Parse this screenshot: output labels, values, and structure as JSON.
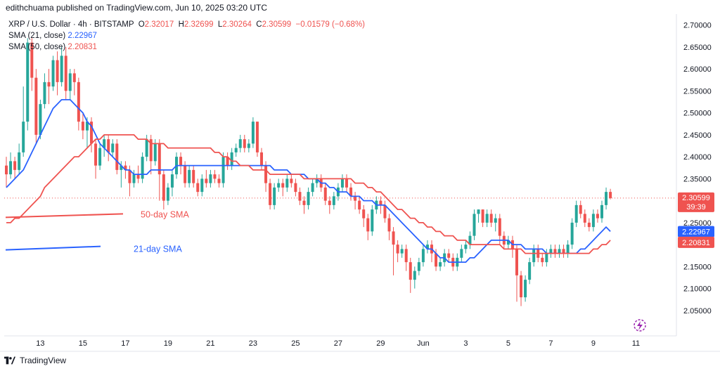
{
  "header": {
    "publisher": "edithchuama published on TradingView.com, Jun 10, 2025 03:20 UTC"
  },
  "legend": {
    "symbol": "XRP / U.S. Dollar · 4h · BITSTAMP",
    "open_label": "O",
    "open": "2.32017",
    "high_label": "H",
    "high": "2.32699",
    "low_label": "L",
    "low": "2.30264",
    "close_label": "C",
    "close": "2.30599",
    "change": "−0.01579 (−0.68%)",
    "sma21_label": "SMA (21, close)",
    "sma21_value": "2.22967",
    "sma50_label": "SMA (50, close)",
    "sma50_value": "2.20831"
  },
  "footer": {
    "brand": "TradingView"
  },
  "chart_data": {
    "type": "candlestick",
    "title": "XRP / U.S. Dollar · 4h · BITSTAMP",
    "ylim": [
      2.005,
      2.725
    ],
    "y_ticks": [
      "2.70000",
      "2.65000",
      "2.60000",
      "2.55000",
      "2.50000",
      "2.45000",
      "2.40000",
      "2.35000",
      "2.30000",
      "2.25000",
      "2.20000",
      "2.15000",
      "2.10000",
      "2.05000"
    ],
    "x_ticks": [
      "13",
      "15",
      "17",
      "19",
      "21",
      "23",
      "25",
      "27",
      "29",
      "Jun",
      "3",
      "5",
      "7",
      "9",
      "11"
    ],
    "x_tick_candle_index": [
      8,
      18,
      28,
      38,
      48,
      58,
      68,
      78,
      88,
      98,
      108,
      118,
      128,
      138,
      148
    ],
    "candles": [
      [
        2.38,
        2.36,
        2.4,
        2.33
      ],
      [
        2.36,
        2.39,
        2.41,
        2.35
      ],
      [
        2.39,
        2.37,
        2.4,
        2.35
      ],
      [
        2.37,
        2.41,
        2.43,
        2.36
      ],
      [
        2.41,
        2.48,
        2.56,
        2.4
      ],
      [
        2.48,
        2.66,
        2.67,
        2.46
      ],
      [
        2.66,
        2.58,
        2.67,
        2.55
      ],
      [
        2.58,
        2.45,
        2.6,
        2.43
      ],
      [
        2.45,
        2.52,
        2.53,
        2.44
      ],
      [
        2.52,
        2.57,
        2.59,
        2.51
      ],
      [
        2.57,
        2.56,
        2.6,
        2.52
      ],
      [
        2.56,
        2.62,
        2.63,
        2.55
      ],
      [
        2.62,
        2.57,
        2.64,
        2.54
      ],
      [
        2.57,
        2.63,
        2.65,
        2.56
      ],
      [
        2.63,
        2.55,
        2.65,
        2.53
      ],
      [
        2.55,
        2.59,
        2.6,
        2.53
      ],
      [
        2.59,
        2.57,
        2.6,
        2.54
      ],
      [
        2.57,
        2.48,
        2.58,
        2.46
      ],
      [
        2.48,
        2.46,
        2.5,
        2.44
      ],
      [
        2.46,
        2.48,
        2.49,
        2.42
      ],
      [
        2.48,
        2.43,
        2.49,
        2.41
      ],
      [
        2.43,
        2.38,
        2.44,
        2.35
      ],
      [
        2.38,
        2.42,
        2.43,
        2.37
      ],
      [
        2.42,
        2.44,
        2.45,
        2.4
      ],
      [
        2.44,
        2.41,
        2.45,
        2.39
      ],
      [
        2.41,
        2.43,
        2.44,
        2.4
      ],
      [
        2.43,
        2.37,
        2.44,
        2.36
      ],
      [
        2.37,
        2.38,
        2.39,
        2.33
      ],
      [
        2.38,
        2.37,
        2.39,
        2.35
      ],
      [
        2.37,
        2.34,
        2.38,
        2.31
      ],
      [
        2.34,
        2.36,
        2.37,
        2.33
      ],
      [
        2.36,
        2.35,
        2.38,
        2.34
      ],
      [
        2.35,
        2.4,
        2.41,
        2.34
      ],
      [
        2.4,
        2.44,
        2.45,
        2.39
      ],
      [
        2.44,
        2.39,
        2.45,
        2.36
      ],
      [
        2.39,
        2.43,
        2.44,
        2.38
      ],
      [
        2.43,
        2.36,
        2.44,
        2.3
      ],
      [
        2.36,
        2.3,
        2.37,
        2.28
      ],
      [
        2.3,
        2.33,
        2.34,
        2.29
      ],
      [
        2.33,
        2.36,
        2.37,
        2.31
      ],
      [
        2.36,
        2.4,
        2.41,
        2.35
      ],
      [
        2.4,
        2.38,
        2.41,
        2.36
      ],
      [
        2.38,
        2.34,
        2.39,
        2.33
      ],
      [
        2.34,
        2.37,
        2.38,
        2.33
      ],
      [
        2.37,
        2.34,
        2.38,
        2.33
      ],
      [
        2.34,
        2.32,
        2.35,
        2.31
      ],
      [
        2.32,
        2.35,
        2.36,
        2.31
      ],
      [
        2.35,
        2.34,
        2.37,
        2.33
      ],
      [
        2.34,
        2.36,
        2.37,
        2.33
      ],
      [
        2.36,
        2.35,
        2.37,
        2.34
      ],
      [
        2.35,
        2.34,
        2.36,
        2.33
      ],
      [
        2.34,
        2.4,
        2.41,
        2.33
      ],
      [
        2.4,
        2.38,
        2.41,
        2.37
      ],
      [
        2.38,
        2.41,
        2.42,
        2.37
      ],
      [
        2.41,
        2.42,
        2.43,
        2.4
      ],
      [
        2.42,
        2.44,
        2.45,
        2.41
      ],
      [
        2.44,
        2.42,
        2.45,
        2.41
      ],
      [
        2.42,
        2.43,
        2.44,
        2.41
      ],
      [
        2.43,
        2.48,
        2.49,
        2.42
      ],
      [
        2.48,
        2.41,
        2.48,
        2.4
      ],
      [
        2.41,
        2.38,
        2.42,
        2.37
      ],
      [
        2.38,
        2.34,
        2.39,
        2.32
      ],
      [
        2.34,
        2.29,
        2.35,
        2.28
      ],
      [
        2.29,
        2.33,
        2.34,
        2.28
      ],
      [
        2.33,
        2.34,
        2.35,
        2.32
      ],
      [
        2.34,
        2.33,
        2.35,
        2.31
      ],
      [
        2.33,
        2.35,
        2.36,
        2.32
      ],
      [
        2.35,
        2.34,
        2.36,
        2.33
      ],
      [
        2.34,
        2.32,
        2.35,
        2.31
      ],
      [
        2.32,
        2.3,
        2.33,
        2.29
      ],
      [
        2.3,
        2.29,
        2.31,
        2.27
      ],
      [
        2.29,
        2.32,
        2.33,
        2.28
      ],
      [
        2.32,
        2.34,
        2.35,
        2.31
      ],
      [
        2.34,
        2.35,
        2.36,
        2.33
      ],
      [
        2.35,
        2.33,
        2.36,
        2.32
      ],
      [
        2.33,
        2.3,
        2.34,
        2.29
      ],
      [
        2.3,
        2.29,
        2.31,
        2.27
      ],
      [
        2.29,
        2.31,
        2.32,
        2.28
      ],
      [
        2.31,
        2.33,
        2.34,
        2.3
      ],
      [
        2.33,
        2.35,
        2.36,
        2.32
      ],
      [
        2.35,
        2.33,
        2.36,
        2.32
      ],
      [
        2.33,
        2.31,
        2.34,
        2.3
      ],
      [
        2.31,
        2.3,
        2.32,
        2.28
      ],
      [
        2.3,
        2.28,
        2.31,
        2.27
      ],
      [
        2.28,
        2.26,
        2.29,
        2.24
      ],
      [
        2.26,
        2.23,
        2.27,
        2.21
      ],
      [
        2.23,
        2.28,
        2.29,
        2.22
      ],
      [
        2.28,
        2.3,
        2.31,
        2.27
      ],
      [
        2.3,
        2.29,
        2.31,
        2.27
      ],
      [
        2.29,
        2.26,
        2.3,
        2.25
      ],
      [
        2.26,
        2.23,
        2.27,
        2.21
      ],
      [
        2.23,
        2.2,
        2.24,
        2.13
      ],
      [
        2.2,
        2.18,
        2.21,
        2.16
      ],
      [
        2.18,
        2.19,
        2.2,
        2.17
      ],
      [
        2.19,
        2.16,
        2.2,
        2.14
      ],
      [
        2.16,
        2.12,
        2.17,
        2.09
      ],
      [
        2.12,
        2.14,
        2.15,
        2.1
      ],
      [
        2.14,
        2.16,
        2.17,
        2.13
      ],
      [
        2.16,
        2.19,
        2.2,
        2.15
      ],
      [
        2.19,
        2.2,
        2.21,
        2.18
      ],
      [
        2.2,
        2.18,
        2.21,
        2.16
      ],
      [
        2.18,
        2.15,
        2.19,
        2.14
      ],
      [
        2.15,
        2.16,
        2.17,
        2.14
      ],
      [
        2.16,
        2.18,
        2.19,
        2.15
      ],
      [
        2.18,
        2.17,
        2.19,
        2.16
      ],
      [
        2.17,
        2.15,
        2.18,
        2.14
      ],
      [
        2.15,
        2.17,
        2.18,
        2.14
      ],
      [
        2.17,
        2.19,
        2.2,
        2.16
      ],
      [
        2.19,
        2.2,
        2.21,
        2.18
      ],
      [
        2.2,
        2.22,
        2.23,
        2.19
      ],
      [
        2.22,
        2.27,
        2.28,
        2.21
      ],
      [
        2.27,
        2.28,
        2.28,
        2.25
      ],
      [
        2.28,
        2.25,
        2.28,
        2.24
      ],
      [
        2.25,
        2.27,
        2.28,
        2.24
      ],
      [
        2.27,
        2.25,
        2.28,
        2.24
      ],
      [
        2.25,
        2.26,
        2.27,
        2.23
      ],
      [
        2.26,
        2.22,
        2.27,
        2.2
      ],
      [
        2.22,
        2.2,
        2.23,
        2.19
      ],
      [
        2.2,
        2.21,
        2.22,
        2.19
      ],
      [
        2.21,
        2.19,
        2.22,
        2.17
      ],
      [
        2.19,
        2.13,
        2.2,
        2.07
      ],
      [
        2.13,
        2.08,
        2.14,
        2.06
      ],
      [
        2.08,
        2.12,
        2.13,
        2.07
      ],
      [
        2.12,
        2.16,
        2.17,
        2.11
      ],
      [
        2.16,
        2.19,
        2.2,
        2.15
      ],
      [
        2.19,
        2.17,
        2.2,
        2.16
      ],
      [
        2.17,
        2.16,
        2.18,
        2.15
      ],
      [
        2.16,
        2.18,
        2.19,
        2.15
      ],
      [
        2.18,
        2.19,
        2.2,
        2.17
      ],
      [
        2.19,
        2.18,
        2.2,
        2.17
      ],
      [
        2.18,
        2.19,
        2.2,
        2.17
      ],
      [
        2.19,
        2.18,
        2.2,
        2.17
      ],
      [
        2.18,
        2.2,
        2.21,
        2.17
      ],
      [
        2.2,
        2.25,
        2.26,
        2.19
      ],
      [
        2.25,
        2.29,
        2.3,
        2.24
      ],
      [
        2.29,
        2.27,
        2.3,
        2.26
      ],
      [
        2.27,
        2.25,
        2.28,
        2.24
      ],
      [
        2.25,
        2.24,
        2.26,
        2.23
      ],
      [
        2.24,
        2.27,
        2.28,
        2.23
      ],
      [
        2.27,
        2.26,
        2.28,
        2.25
      ],
      [
        2.26,
        2.29,
        2.3,
        2.25
      ],
      [
        2.29,
        2.32,
        2.33,
        2.28
      ],
      [
        2.32,
        2.306,
        2.327,
        2.303
      ]
    ],
    "series": [
      {
        "name": "SMA (21, close)",
        "color": "#2962ff",
        "values": [
          2.33,
          2.34,
          2.35,
          2.36,
          2.37,
          2.39,
          2.41,
          2.43,
          2.45,
          2.47,
          2.49,
          2.51,
          2.52,
          2.53,
          2.53,
          2.53,
          2.52,
          2.51,
          2.5,
          2.48,
          2.47,
          2.45,
          2.43,
          2.42,
          2.41,
          2.4,
          2.39,
          2.38,
          2.37,
          2.37,
          2.36,
          2.36,
          2.36,
          2.36,
          2.37,
          2.37,
          2.37,
          2.37,
          2.37,
          2.37,
          2.38,
          2.38,
          2.38,
          2.38,
          2.38,
          2.38,
          2.38,
          2.38,
          2.38,
          2.38,
          2.38,
          2.38,
          2.38,
          2.38,
          2.38,
          2.38,
          2.38,
          2.38,
          2.38,
          2.38,
          2.38,
          2.38,
          2.38,
          2.37,
          2.37,
          2.37,
          2.37,
          2.36,
          2.36,
          2.36,
          2.36,
          2.35,
          2.35,
          2.35,
          2.34,
          2.34,
          2.33,
          2.33,
          2.32,
          2.32,
          2.32,
          2.31,
          2.31,
          2.31,
          2.3,
          2.3,
          2.3,
          2.29,
          2.29,
          2.29,
          2.28,
          2.27,
          2.26,
          2.25,
          2.24,
          2.23,
          2.22,
          2.21,
          2.2,
          2.19,
          2.19,
          2.18,
          2.17,
          2.17,
          2.16,
          2.16,
          2.16,
          2.16,
          2.16,
          2.17,
          2.17,
          2.18,
          2.19,
          2.2,
          2.21,
          2.21,
          2.21,
          2.21,
          2.21,
          2.2,
          2.2,
          2.2,
          2.19,
          2.19,
          2.19,
          2.19,
          2.19,
          2.18,
          2.18,
          2.18,
          2.18,
          2.18,
          2.18,
          2.18,
          2.18,
          2.19,
          2.19,
          2.2,
          2.21,
          2.22,
          2.23,
          2.24,
          2.23
        ]
      },
      {
        "name": "SMA (50, close)",
        "color": "#ef5350",
        "values": [
          2.25,
          2.25,
          2.26,
          2.26,
          2.27,
          2.28,
          2.29,
          2.3,
          2.31,
          2.33,
          2.34,
          2.35,
          2.36,
          2.37,
          2.38,
          2.39,
          2.4,
          2.4,
          2.41,
          2.42,
          2.43,
          2.44,
          2.44,
          2.45,
          2.45,
          2.45,
          2.45,
          2.45,
          2.45,
          2.45,
          2.45,
          2.44,
          2.44,
          2.44,
          2.43,
          2.43,
          2.43,
          2.43,
          2.42,
          2.42,
          2.42,
          2.42,
          2.42,
          2.42,
          2.42,
          2.42,
          2.42,
          2.42,
          2.42,
          2.41,
          2.41,
          2.4,
          2.4,
          2.39,
          2.39,
          2.38,
          2.38,
          2.38,
          2.37,
          2.37,
          2.37,
          2.37,
          2.36,
          2.36,
          2.36,
          2.36,
          2.36,
          2.36,
          2.36,
          2.36,
          2.35,
          2.35,
          2.35,
          2.35,
          2.35,
          2.35,
          2.35,
          2.35,
          2.35,
          2.35,
          2.35,
          2.35,
          2.34,
          2.34,
          2.34,
          2.33,
          2.33,
          2.32,
          2.32,
          2.31,
          2.3,
          2.29,
          2.28,
          2.28,
          2.27,
          2.26,
          2.26,
          2.25,
          2.25,
          2.24,
          2.24,
          2.23,
          2.23,
          2.22,
          2.22,
          2.22,
          2.21,
          2.21,
          2.21,
          2.2,
          2.2,
          2.2,
          2.2,
          2.2,
          2.2,
          2.2,
          2.2,
          2.19,
          2.19,
          2.19,
          2.19,
          2.19,
          2.18,
          2.18,
          2.18,
          2.18,
          2.18,
          2.18,
          2.18,
          2.18,
          2.18,
          2.18,
          2.18,
          2.18,
          2.18,
          2.18,
          2.18,
          2.18,
          2.19,
          2.19,
          2.2,
          2.2,
          2.21
        ]
      }
    ],
    "price_markers": [
      {
        "value": 2.30599,
        "label": "2.30599",
        "sublabel": "39:39",
        "color": "#ef5350"
      },
      {
        "value": 2.22967,
        "label": "2.22967",
        "color": "#2962ff"
      },
      {
        "value": 2.20831,
        "label": "2.20831",
        "color": "#ef5350"
      }
    ],
    "annotations": [
      {
        "text": "50-day SMA",
        "color": "#ef5350",
        "line_from": [
          2.262,
          2.27
        ]
      },
      {
        "text": "21-day SMA",
        "color": "#2962ff",
        "line_from": [
          2.188,
          2.196
        ]
      }
    ],
    "up_color": "#26a69a",
    "down_color": "#ef5350"
  }
}
